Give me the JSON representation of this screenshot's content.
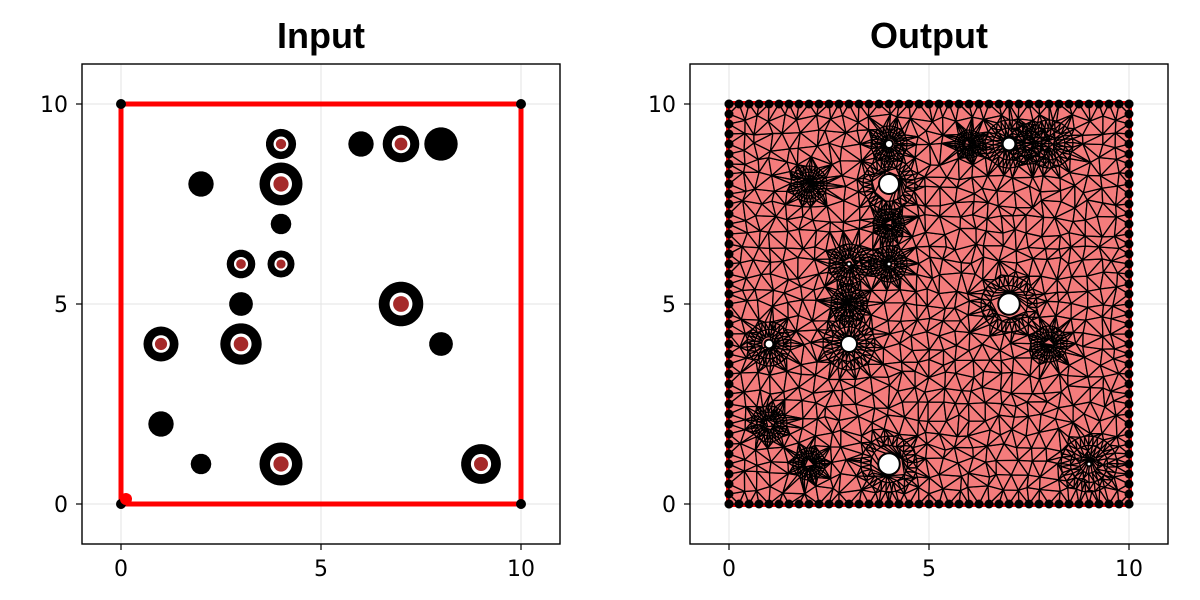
{
  "colors": {
    "boundary": "#ff0000",
    "vertex": "#000000",
    "hole_marker": "#a52a2a",
    "mesh_fill": "#f47c7c",
    "mesh_edge": "#000000",
    "background": "#ffffff",
    "grid": "#e3e3e3"
  },
  "chart_data": [
    {
      "type": "scatter",
      "title": "Input",
      "xlabel": "",
      "ylabel": "",
      "xlim": [
        -1,
        11
      ],
      "ylim": [
        -1,
        11
      ],
      "xticks": [
        0,
        5,
        10
      ],
      "yticks": [
        0,
        5,
        10
      ],
      "grid": true,
      "boundary": [
        [
          0,
          0
        ],
        [
          10,
          0
        ],
        [
          10,
          10
        ],
        [
          0,
          10
        ]
      ],
      "circles": [
        {
          "x": 4,
          "y": 9,
          "r": 0.34,
          "hole": true
        },
        {
          "x": 6,
          "y": 9,
          "r": 0.28,
          "hole": false
        },
        {
          "x": 7,
          "y": 9,
          "r": 0.42,
          "hole": true
        },
        {
          "x": 8,
          "y": 9,
          "r": 0.38,
          "hole": false
        },
        {
          "x": 2,
          "y": 8,
          "r": 0.28,
          "hole": false
        },
        {
          "x": 4,
          "y": 8,
          "r": 0.5,
          "hole": true
        },
        {
          "x": 4,
          "y": 7,
          "r": 0.22,
          "hole": false
        },
        {
          "x": 3,
          "y": 6,
          "r": 0.32,
          "hole": true
        },
        {
          "x": 4,
          "y": 6,
          "r": 0.3,
          "hole": true
        },
        {
          "x": 3,
          "y": 5,
          "r": 0.26,
          "hole": false
        },
        {
          "x": 7,
          "y": 5,
          "r": 0.52,
          "hole": true
        },
        {
          "x": 1,
          "y": 4,
          "r": 0.4,
          "hole": true
        },
        {
          "x": 3,
          "y": 4,
          "r": 0.48,
          "hole": true
        },
        {
          "x": 8,
          "y": 4,
          "r": 0.26,
          "hole": false
        },
        {
          "x": 1,
          "y": 2,
          "r": 0.28,
          "hole": false
        },
        {
          "x": 2,
          "y": 1,
          "r": 0.22,
          "hole": false
        },
        {
          "x": 4,
          "y": 1,
          "r": 0.5,
          "hole": true
        },
        {
          "x": 9,
          "y": 1,
          "r": 0.46,
          "hole": true
        }
      ]
    },
    {
      "type": "scatter",
      "title": "Output",
      "xlabel": "",
      "ylabel": "",
      "xlim": [
        -1,
        11
      ],
      "ylim": [
        -1,
        11
      ],
      "xticks": [
        0,
        5,
        10
      ],
      "yticks": [
        0,
        5,
        10
      ],
      "grid": true,
      "boundary": [
        [
          0,
          0
        ],
        [
          10,
          0
        ],
        [
          10,
          10
        ],
        [
          0,
          10
        ]
      ],
      "holes": [
        {
          "x": 4,
          "y": 9,
          "r": 0.1
        },
        {
          "x": 7,
          "y": 9,
          "r": 0.16
        },
        {
          "x": 4,
          "y": 8,
          "r": 0.25
        },
        {
          "x": 3,
          "y": 6,
          "r": 0.06
        },
        {
          "x": 4,
          "y": 6,
          "r": 0.06
        },
        {
          "x": 7,
          "y": 5,
          "r": 0.27
        },
        {
          "x": 1,
          "y": 4,
          "r": 0.11
        },
        {
          "x": 3,
          "y": 4,
          "r": 0.2
        },
        {
          "x": 4,
          "y": 1,
          "r": 0.27
        },
        {
          "x": 9,
          "y": 1,
          "r": 0.06
        }
      ],
      "refined_regions": [
        {
          "x": 4,
          "y": 9,
          "r": 0.45
        },
        {
          "x": 6,
          "y": 9,
          "r": 0.35
        },
        {
          "x": 7,
          "y": 9,
          "r": 0.6
        },
        {
          "x": 7.5,
          "y": 9,
          "r": 0.5
        },
        {
          "x": 8,
          "y": 9,
          "r": 0.6
        },
        {
          "x": 2,
          "y": 8,
          "r": 0.45
        },
        {
          "x": 4,
          "y": 8,
          "r": 0.65
        },
        {
          "x": 4,
          "y": 7,
          "r": 0.38
        },
        {
          "x": 3,
          "y": 6,
          "r": 0.5
        },
        {
          "x": 4,
          "y": 6,
          "r": 0.45
        },
        {
          "x": 3,
          "y": 5,
          "r": 0.45
        },
        {
          "x": 7,
          "y": 5,
          "r": 0.7
        },
        {
          "x": 1,
          "y": 4,
          "r": 0.55
        },
        {
          "x": 3,
          "y": 4,
          "r": 0.65
        },
        {
          "x": 8,
          "y": 4,
          "r": 0.45
        },
        {
          "x": 1,
          "y": 2,
          "r": 0.45
        },
        {
          "x": 2,
          "y": 1,
          "r": 0.4
        },
        {
          "x": 4,
          "y": 1,
          "r": 0.7
        },
        {
          "x": 9,
          "y": 1,
          "r": 0.7
        }
      ]
    }
  ]
}
